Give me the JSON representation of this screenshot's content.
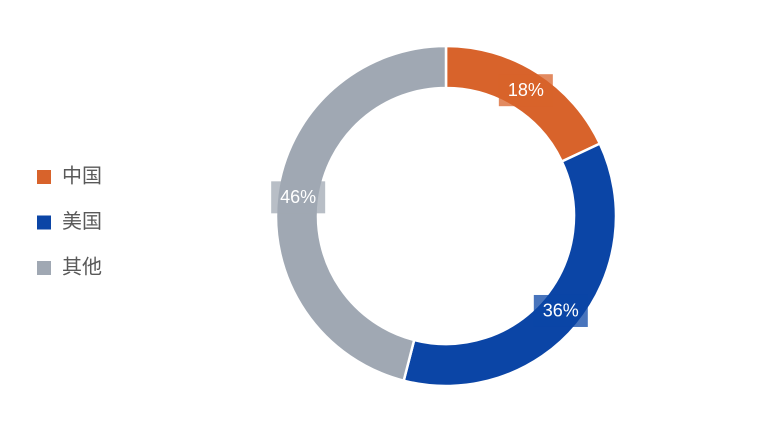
{
  "chart_data": {
    "type": "donut",
    "categories": [
      "中国",
      "美国",
      "其他"
    ],
    "values": [
      18,
      36,
      46
    ],
    "value_labels": [
      "18%",
      "36%",
      "46%"
    ],
    "colors": [
      "#d8632b",
      "#0b45a6",
      "#a0a8b3"
    ],
    "legend": "left"
  }
}
